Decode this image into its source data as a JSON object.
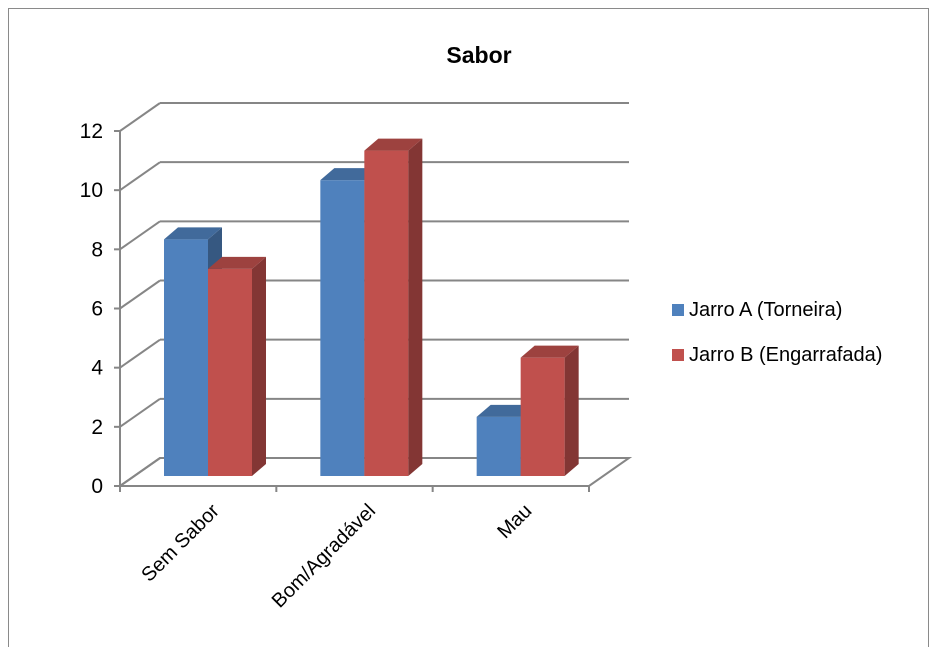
{
  "chart_data": {
    "type": "bar",
    "title": "Sabor",
    "categories": [
      "Sem Sabor",
      "Bom/Agradável",
      "Mau"
    ],
    "series": [
      {
        "name": "Jarro A (Torneira)",
        "values": [
          8,
          10,
          2
        ],
        "color": "#4f81bd"
      },
      {
        "name": "Jarro B (Engarrafada)",
        "values": [
          7,
          11,
          4
        ],
        "color": "#c0504d"
      }
    ],
    "ylim": [
      0,
      12
    ],
    "yticks": [
      0,
      2,
      4,
      6,
      8,
      10,
      12
    ],
    "grid": true,
    "legend_position": "right",
    "style": "3d-clustered-column"
  }
}
